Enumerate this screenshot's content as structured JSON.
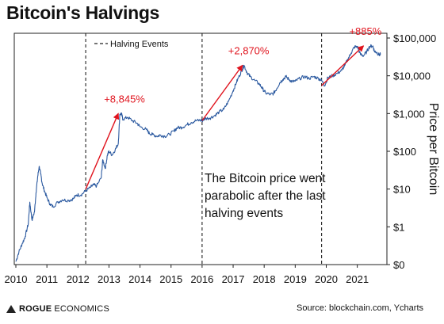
{
  "header": {
    "title": "Bitcoin's Halvings"
  },
  "footer": {
    "brand_strong": "ROGUE",
    "brand_light": "ECONOMICS",
    "brand_icon": "triangle-logo-icon",
    "source": "Source: blockchain.com, Ycharts"
  },
  "colors": {
    "line": "#2c5aa0",
    "arrow": "#e0141e",
    "gain_text": "#e0141e",
    "halving_line": "#222222"
  },
  "chart_data": {
    "type": "line",
    "title": "Bitcoin's Halvings",
    "xlabel": "",
    "ylabel": "Price per Bitcoin",
    "yscale": "log",
    "xlim": [
      2010,
      2021.75
    ],
    "ylim": [
      0.1,
      100000
    ],
    "x_ticks": [
      "2010",
      "2011",
      "2012",
      "2013",
      "2014",
      "2015",
      "2016",
      "2017",
      "2018",
      "2019",
      "2020",
      "2021"
    ],
    "y_ticks": [
      {
        "value": 0.1,
        "label": "$0"
      },
      {
        "value": 1,
        "label": "$1"
      },
      {
        "value": 10,
        "label": "$10"
      },
      {
        "value": 100,
        "label": "$100"
      },
      {
        "value": 1000,
        "label": "$1,000"
      },
      {
        "value": 10000,
        "label": "$10,000"
      },
      {
        "value": 100000,
        "label": "$100,000"
      }
    ],
    "legend": {
      "label": "Halving Events",
      "placement": "top-left"
    },
    "halving_events": [
      2012.25,
      2016.0,
      2019.85
    ],
    "series": [
      {
        "values": [
          [
            2010.0,
            0.12
          ],
          [
            2010.1,
            0.22
          ],
          [
            2010.2,
            0.35
          ],
          [
            2010.3,
            0.55
          ],
          [
            2010.4,
            1.2
          ],
          [
            2010.45,
            4.5
          ],
          [
            2010.52,
            1.5
          ],
          [
            2010.6,
            2.5
          ],
          [
            2010.65,
            8
          ],
          [
            2010.7,
            20
          ],
          [
            2010.75,
            40
          ],
          [
            2010.8,
            25
          ],
          [
            2010.85,
            14
          ],
          [
            2010.92,
            9
          ],
          [
            2011.0,
            6
          ],
          [
            2011.1,
            4
          ],
          [
            2011.2,
            3.4
          ],
          [
            2011.35,
            4.5
          ],
          [
            2011.5,
            5.2
          ],
          [
            2011.7,
            5
          ],
          [
            2011.85,
            5.5
          ],
          [
            2011.95,
            7
          ],
          [
            2012.1,
            7
          ],
          [
            2012.25,
            9
          ],
          [
            2012.4,
            11
          ],
          [
            2012.5,
            13
          ],
          [
            2012.6,
            12
          ],
          [
            2012.75,
            20
          ],
          [
            2012.8,
            60
          ],
          [
            2012.88,
            35
          ],
          [
            2012.95,
            80
          ],
          [
            2013.0,
            100
          ],
          [
            2013.1,
            80
          ],
          [
            2013.2,
            110
          ],
          [
            2013.3,
            160
          ],
          [
            2013.35,
            950
          ],
          [
            2013.4,
            1000
          ],
          [
            2013.45,
            700
          ],
          [
            2013.6,
            800
          ],
          [
            2013.75,
            650
          ],
          [
            2013.9,
            560
          ],
          [
            2014.0,
            450
          ],
          [
            2014.2,
            380
          ],
          [
            2014.3,
            300
          ],
          [
            2014.4,
            280
          ],
          [
            2014.55,
            250
          ],
          [
            2014.65,
            270
          ],
          [
            2014.8,
            250
          ],
          [
            2014.95,
            280
          ],
          [
            2015.1,
            350
          ],
          [
            2015.2,
            420
          ],
          [
            2015.35,
            430
          ],
          [
            2015.5,
            500
          ],
          [
            2015.65,
            580
          ],
          [
            2015.8,
            650
          ],
          [
            2015.95,
            660
          ],
          [
            2016.0,
            650
          ],
          [
            2016.1,
            740
          ],
          [
            2016.25,
            760
          ],
          [
            2016.4,
            880
          ],
          [
            2016.55,
            1100
          ],
          [
            2016.7,
            1300
          ],
          [
            2016.85,
            2100
          ],
          [
            2017.0,
            4000
          ],
          [
            2017.1,
            6500
          ],
          [
            2017.2,
            10000
          ],
          [
            2017.3,
            15000
          ],
          [
            2017.35,
            19000
          ],
          [
            2017.45,
            12000
          ],
          [
            2017.55,
            9500
          ],
          [
            2017.7,
            7500
          ],
          [
            2017.85,
            6000
          ],
          [
            2017.95,
            4500
          ],
          [
            2018.05,
            3500
          ],
          [
            2018.2,
            3200
          ],
          [
            2018.3,
            3400
          ],
          [
            2018.4,
            4500
          ],
          [
            2018.5,
            6500
          ],
          [
            2018.6,
            8000
          ],
          [
            2018.7,
            9500
          ],
          [
            2018.8,
            8000
          ],
          [
            2018.9,
            7000
          ],
          [
            2019.0,
            7200
          ],
          [
            2019.15,
            8500
          ],
          [
            2019.3,
            9500
          ],
          [
            2019.45,
            8500
          ],
          [
            2019.6,
            9500
          ],
          [
            2019.75,
            8500
          ],
          [
            2019.85,
            7500
          ],
          [
            2019.95,
            5500
          ],
          [
            2020.05,
            9000
          ],
          [
            2020.2,
            10000
          ],
          [
            2020.35,
            11500
          ],
          [
            2020.5,
            14000
          ],
          [
            2020.6,
            19000
          ],
          [
            2020.7,
            28000
          ],
          [
            2020.8,
            40000
          ],
          [
            2020.9,
            57000
          ],
          [
            2021.0,
            60000
          ],
          [
            2021.1,
            37000
          ],
          [
            2021.2,
            34000
          ],
          [
            2021.3,
            43000
          ],
          [
            2021.4,
            60000
          ],
          [
            2021.5,
            62000
          ],
          [
            2021.55,
            45000
          ],
          [
            2021.62,
            42000
          ],
          [
            2021.7,
            36000
          ],
          [
            2021.75,
            37000
          ]
        ]
      }
    ],
    "annotations": [
      {
        "text": "+8,845%",
        "from": [
          2012.25,
          10
        ],
        "to": [
          2013.3,
          1000
        ]
      },
      {
        "text": "+2,870%",
        "from": [
          2016.0,
          650
        ],
        "to": [
          2017.3,
          19000
        ]
      },
      {
        "text": "+885%",
        "from": [
          2019.85,
          5500
        ],
        "to": [
          2021.2,
          62000
        ]
      }
    ],
    "note": "The Bitcoin price went parabolic after the last halving events"
  }
}
